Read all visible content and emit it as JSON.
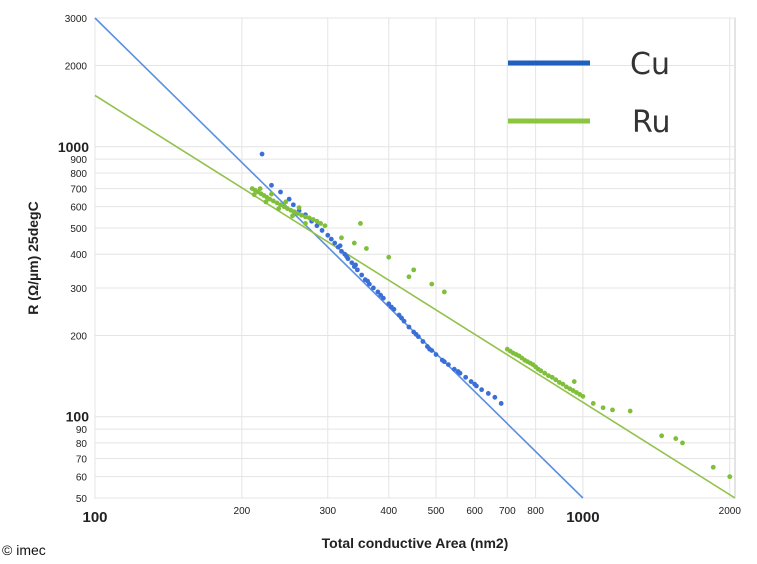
{
  "chart_data": {
    "type": "scatter",
    "title": "",
    "xlabel": "Total conductive Area (nm2)",
    "ylabel": "R (Ω/µm) 25degC",
    "xscale": "log",
    "yscale": "log",
    "xlim": [
      100,
      2050
    ],
    "ylim": [
      50,
      3000
    ],
    "grid": true,
    "legend_position": "top-right",
    "x_ticks_major": [
      "100",
      "1000"
    ],
    "x_ticks_minor": [
      "200",
      "300",
      "400",
      "500",
      "600",
      "700",
      "800",
      "2000"
    ],
    "y_ticks_major": [
      "100",
      "1000"
    ],
    "y_ticks_minor": [
      "50",
      "60",
      "70",
      "80",
      "90",
      "200",
      "300",
      "400",
      "500",
      "600",
      "700",
      "800",
      "900",
      "2000",
      "3000"
    ],
    "series": [
      {
        "name": "Cu",
        "color": "#3a6fd8",
        "line_color": "#5b8fe0",
        "legend_color": "#1f5fc0",
        "fit_line": [
          [
            100,
            3000
          ],
          [
            1000,
            50
          ]
        ],
        "points": [
          [
            220,
            940
          ],
          [
            230,
            720
          ],
          [
            240,
            680
          ],
          [
            250,
            640
          ],
          [
            255,
            610
          ],
          [
            262,
            580
          ],
          [
            270,
            560
          ],
          [
            278,
            530
          ],
          [
            285,
            510
          ],
          [
            292,
            490
          ],
          [
            300,
            470
          ],
          [
            305,
            455
          ],
          [
            310,
            440
          ],
          [
            315,
            425
          ],
          [
            320,
            410
          ],
          [
            325,
            400
          ],
          [
            330,
            385
          ],
          [
            336,
            372
          ],
          [
            340,
            360
          ],
          [
            345,
            350
          ],
          [
            352,
            335
          ],
          [
            358,
            322
          ],
          [
            365,
            310
          ],
          [
            372,
            300
          ],
          [
            380,
            290
          ],
          [
            390,
            275
          ],
          [
            400,
            262
          ],
          [
            410,
            250
          ],
          [
            420,
            238
          ],
          [
            430,
            226
          ],
          [
            440,
            215
          ],
          [
            450,
            206
          ],
          [
            460,
            198
          ],
          [
            470,
            190
          ],
          [
            480,
            182
          ],
          [
            490,
            176
          ],
          [
            500,
            170
          ],
          [
            515,
            162
          ],
          [
            530,
            156
          ],
          [
            545,
            150
          ],
          [
            560,
            145
          ],
          [
            575,
            140
          ],
          [
            590,
            135
          ],
          [
            605,
            130
          ],
          [
            620,
            126
          ],
          [
            640,
            122
          ],
          [
            660,
            118
          ],
          [
            680,
            112
          ],
          [
            318,
            430
          ],
          [
            328,
            392
          ],
          [
            342,
            365
          ],
          [
            362,
            318
          ],
          [
            385,
            282
          ],
          [
            405,
            255
          ],
          [
            425,
            232
          ],
          [
            455,
            202
          ],
          [
            485,
            178
          ],
          [
            520,
            160
          ],
          [
            555,
            147
          ],
          [
            600,
            132
          ]
        ]
      },
      {
        "name": "Ru",
        "color": "#7fbf3a",
        "line_color": "#92c14a",
        "legend_color": "#8cc63f",
        "fit_line": [
          [
            100,
            1550
          ],
          [
            2050,
            50
          ]
        ],
        "points": [
          [
            210,
            700
          ],
          [
            213,
            690
          ],
          [
            216,
            680
          ],
          [
            219,
            670
          ],
          [
            222,
            660
          ],
          [
            225,
            650
          ],
          [
            228,
            640
          ],
          [
            232,
            630
          ],
          [
            236,
            620
          ],
          [
            240,
            610
          ],
          [
            244,
            600
          ],
          [
            248,
            590
          ],
          [
            252,
            582
          ],
          [
            256,
            575
          ],
          [
            260,
            566
          ],
          [
            265,
            558
          ],
          [
            270,
            550
          ],
          [
            275,
            545
          ],
          [
            280,
            538
          ],
          [
            285,
            530
          ],
          [
            290,
            520
          ],
          [
            296,
            510
          ],
          [
            212,
            665
          ],
          [
            218,
            700
          ],
          [
            224,
            625
          ],
          [
            230,
            668
          ],
          [
            238,
            590
          ],
          [
            246,
            625
          ],
          [
            254,
            555
          ],
          [
            262,
            595
          ],
          [
            270,
            520
          ],
          [
            320,
            460
          ],
          [
            340,
            440
          ],
          [
            350,
            520
          ],
          [
            360,
            420
          ],
          [
            400,
            390
          ],
          [
            440,
            330
          ],
          [
            450,
            350
          ],
          [
            490,
            310
          ],
          [
            520,
            290
          ],
          [
            700,
            178
          ],
          [
            710,
            175
          ],
          [
            720,
            172
          ],
          [
            730,
            170
          ],
          [
            740,
            168
          ],
          [
            750,
            165
          ],
          [
            760,
            162
          ],
          [
            770,
            160
          ],
          [
            780,
            158
          ],
          [
            790,
            156
          ],
          [
            800,
            153
          ],
          [
            810,
            150
          ],
          [
            820,
            148
          ],
          [
            835,
            145
          ],
          [
            850,
            142
          ],
          [
            865,
            140
          ],
          [
            880,
            137
          ],
          [
            895,
            134
          ],
          [
            910,
            132
          ],
          [
            925,
            129
          ],
          [
            940,
            127
          ],
          [
            955,
            125
          ],
          [
            970,
            123
          ],
          [
            985,
            121
          ],
          [
            1000,
            119
          ],
          [
            960,
            135
          ],
          [
            1050,
            112
          ],
          [
            1100,
            108
          ],
          [
            1150,
            106
          ],
          [
            1250,
            105
          ],
          [
            1450,
            85
          ],
          [
            1550,
            83
          ],
          [
            1600,
            80
          ],
          [
            1850,
            65
          ],
          [
            2000,
            60
          ]
        ]
      }
    ]
  },
  "footer": {
    "copyright": "© imec"
  }
}
